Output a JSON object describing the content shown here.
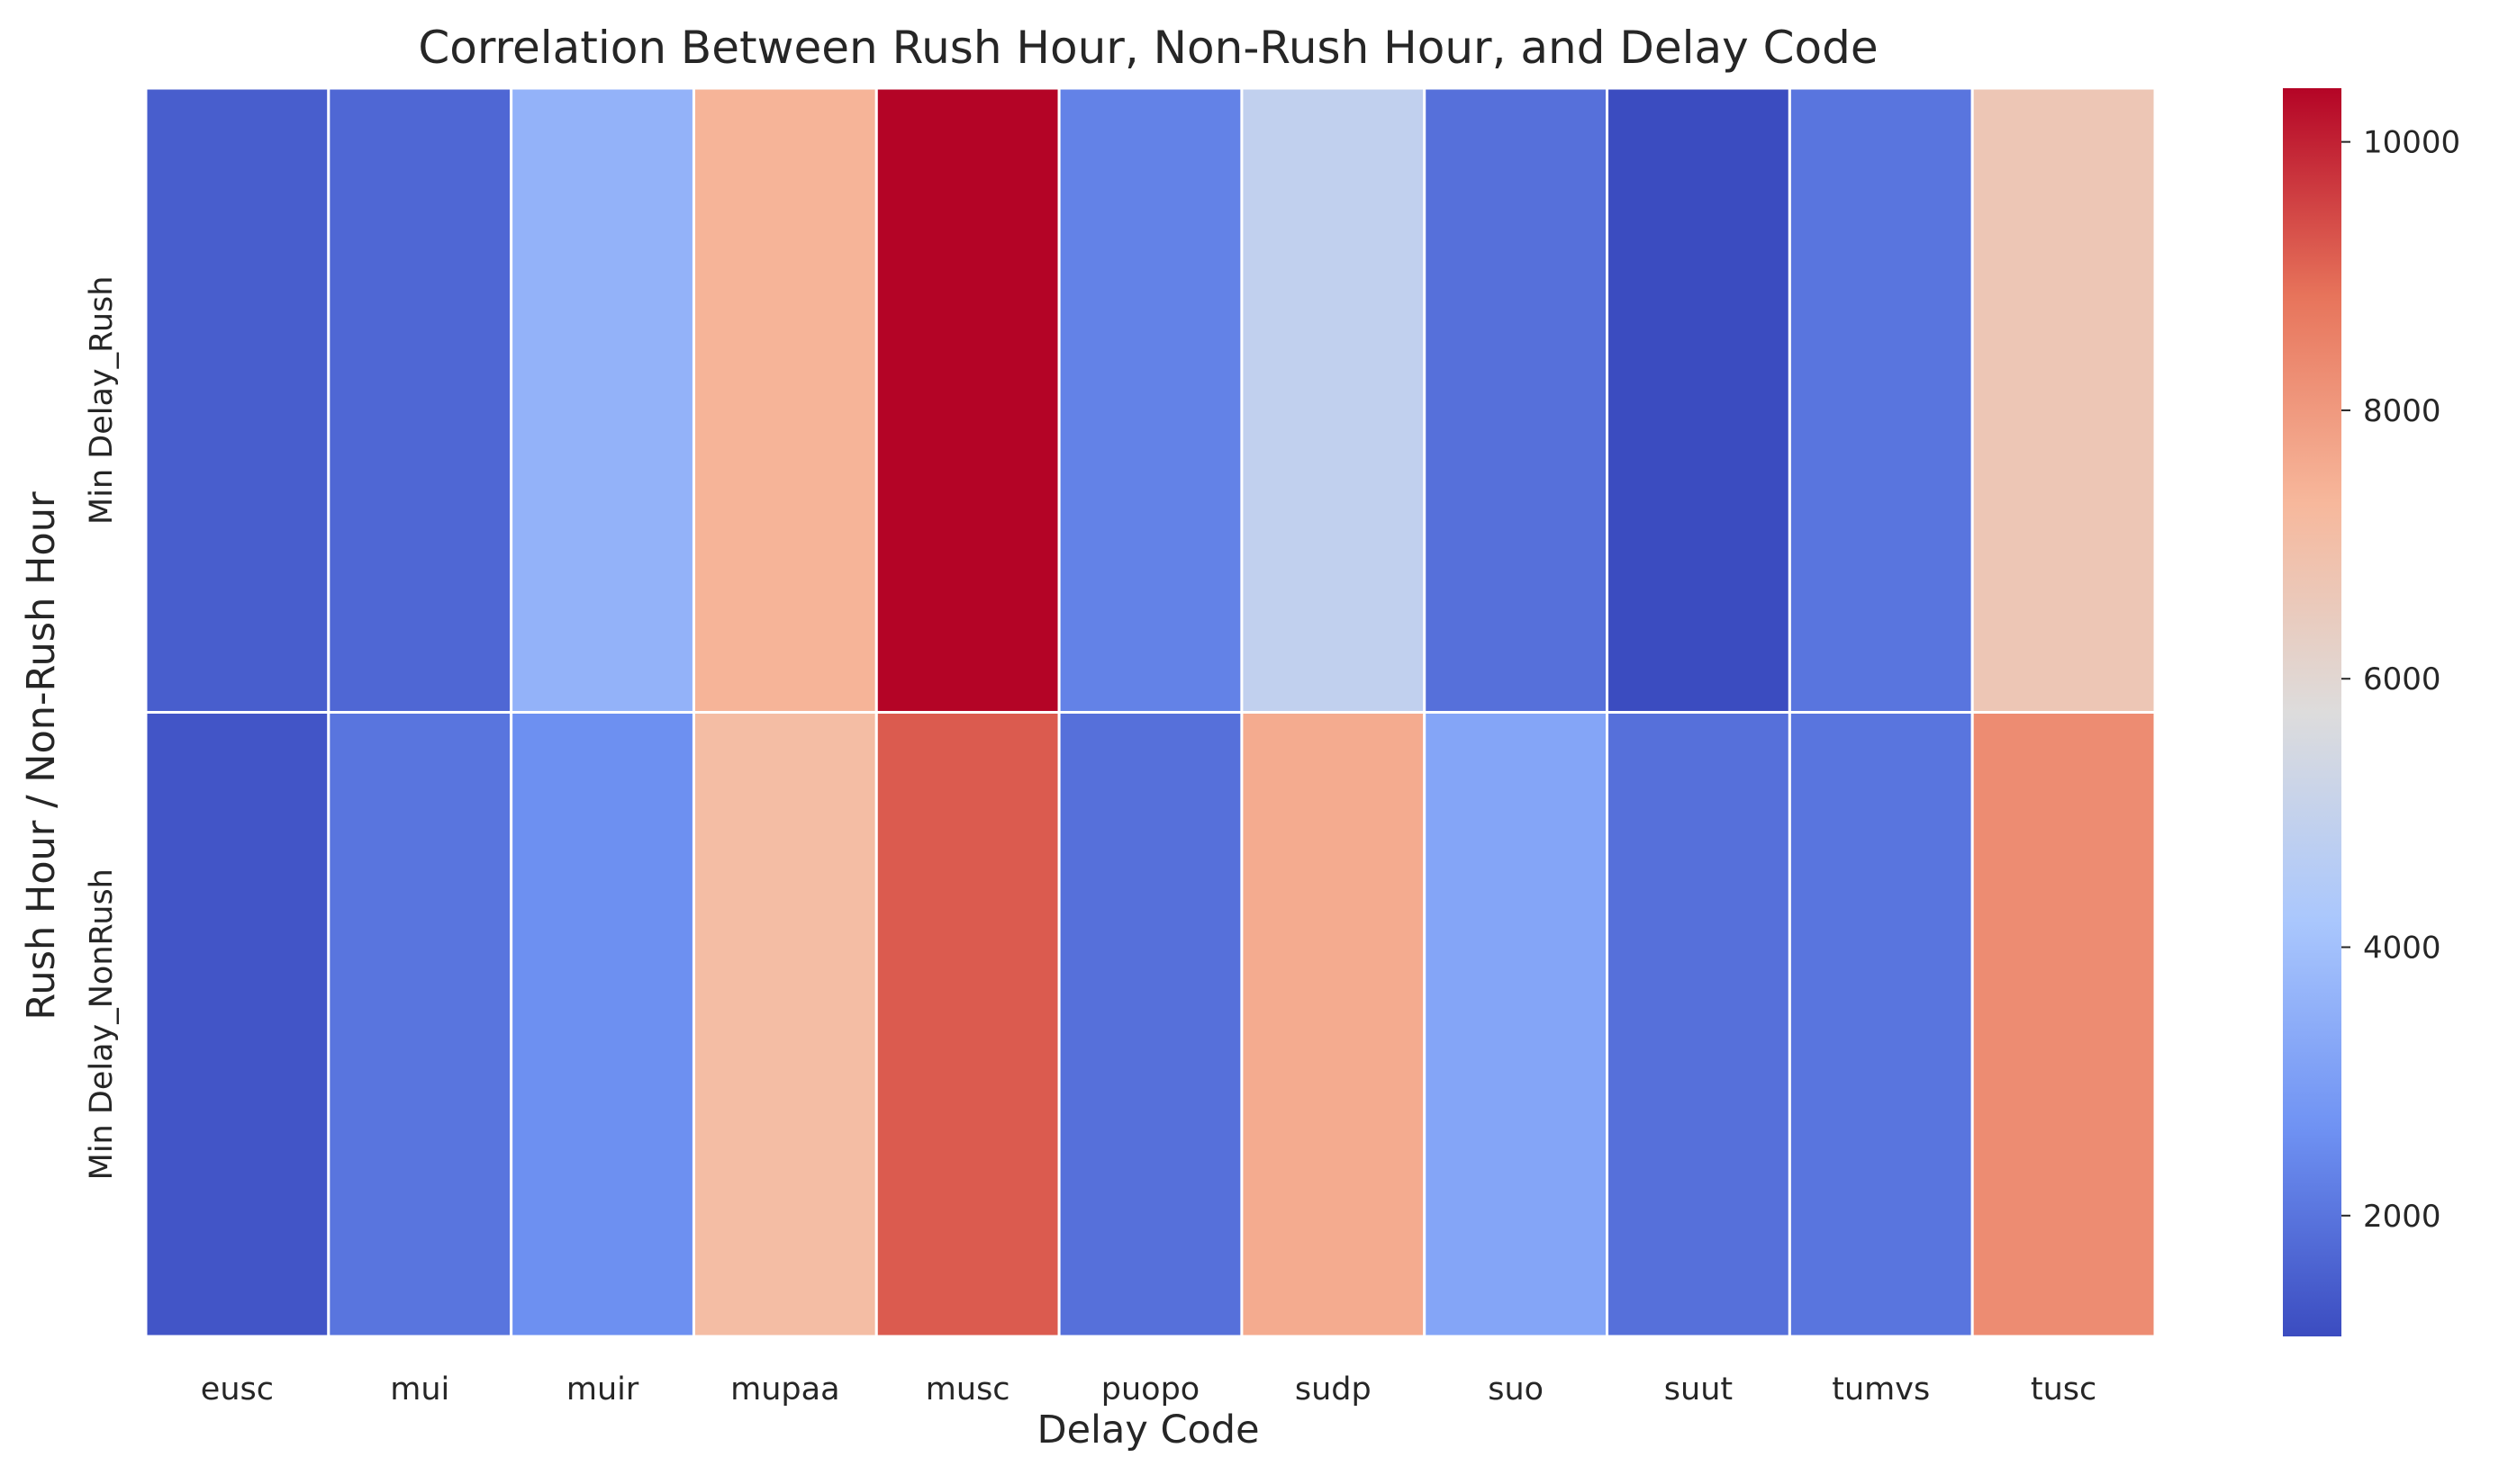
{
  "chart_data": {
    "type": "heatmap",
    "title": "Correlation Between Rush Hour, Non-Rush Hour, and Delay Code",
    "xlabel": "Delay Code",
    "ylabel": "Rush Hour / Non-Rush Hour",
    "x_categories": [
      "eusc",
      "mui",
      "muir",
      "mupaa",
      "musc",
      "puopo",
      "sudp",
      "suo",
      "suut",
      "tumvs",
      "tusc"
    ],
    "y_categories": [
      "Min Delay_Rush",
      "Min Delay_NonRush"
    ],
    "values": [
      [
        1500,
        1700,
        3600,
        7400,
        10400,
        2300,
        4900,
        1900,
        1100,
        2000,
        6700
      ],
      [
        1300,
        2000,
        2600,
        7100,
        9200,
        1900,
        7600,
        3200,
        1900,
        2000,
        8300
      ]
    ],
    "colorbar": {
      "min": 1100,
      "max": 10400,
      "ticks": [
        "2000",
        "4000",
        "6000",
        "8000",
        "10000"
      ],
      "tick_values": [
        2000,
        4000,
        6000,
        8000,
        10000
      ]
    },
    "colormap": "coolwarm",
    "colormap_stops": [
      "#3b4cc0",
      "#6f92f3",
      "#aac7fd",
      "#dddcdc",
      "#f7b89c",
      "#e7745b",
      "#b40426"
    ]
  }
}
